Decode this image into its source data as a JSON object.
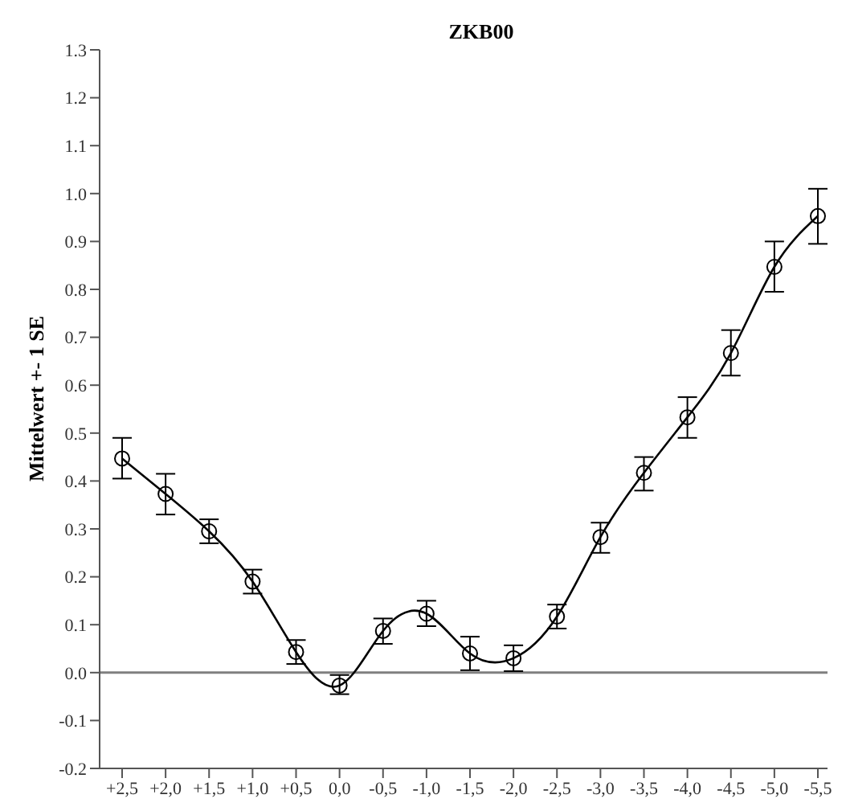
{
  "chart_data": {
    "type": "line",
    "title": "ZKB00",
    "ylabel": "Mittelwert +- 1 SE",
    "categories": [
      "+2,5",
      "+2,0",
      "+1,5",
      "+1,0",
      "+0,5",
      "0,0",
      "-0,5",
      "-1,0",
      "-1,5",
      "-2,0",
      "-2,5",
      "-3,0",
      "-3,5",
      "-4,0",
      "-4,5",
      "-5,0",
      "-5,5"
    ],
    "series": [
      {
        "color": "#000000",
        "values": [
          0.447,
          0.373,
          0.295,
          0.19,
          0.043,
          -0.027,
          0.087,
          0.123,
          0.04,
          0.03,
          0.117,
          0.283,
          0.417,
          0.533,
          0.667,
          0.847,
          0.953
        ],
        "errors": [
          [
            0.405,
            0.49
          ],
          [
            0.33,
            0.415
          ],
          [
            0.27,
            0.32
          ],
          [
            0.165,
            0.215
          ],
          [
            0.018,
            0.068
          ],
          [
            -0.045,
            -0.005
          ],
          [
            0.06,
            0.113
          ],
          [
            0.097,
            0.15
          ],
          [
            0.005,
            0.075
          ],
          [
            0.003,
            0.057
          ],
          [
            0.092,
            0.142
          ],
          [
            0.25,
            0.313
          ],
          [
            0.38,
            0.45
          ],
          [
            0.49,
            0.575
          ],
          [
            0.62,
            0.715
          ],
          [
            0.795,
            0.9
          ],
          [
            0.895,
            1.01
          ]
        ]
      }
    ],
    "ylim": [
      -0.2,
      1.3
    ],
    "yticks": [
      -0.2,
      -0.1,
      {
        "value": 0,
        "label": "0.0"
      },
      0.1,
      0.2,
      0.3,
      0.4,
      0.5,
      0.6,
      0.7,
      0.8,
      0.9,
      {
        "value": 1,
        "label": "1.0"
      },
      1.1,
      1.2,
      1.3
    ],
    "ref_lines": [
      {
        "axis": "y",
        "value": 0,
        "color": "#808080"
      }
    ],
    "marker": "circle",
    "line_style": "solid",
    "grid": false,
    "legend": false
  }
}
